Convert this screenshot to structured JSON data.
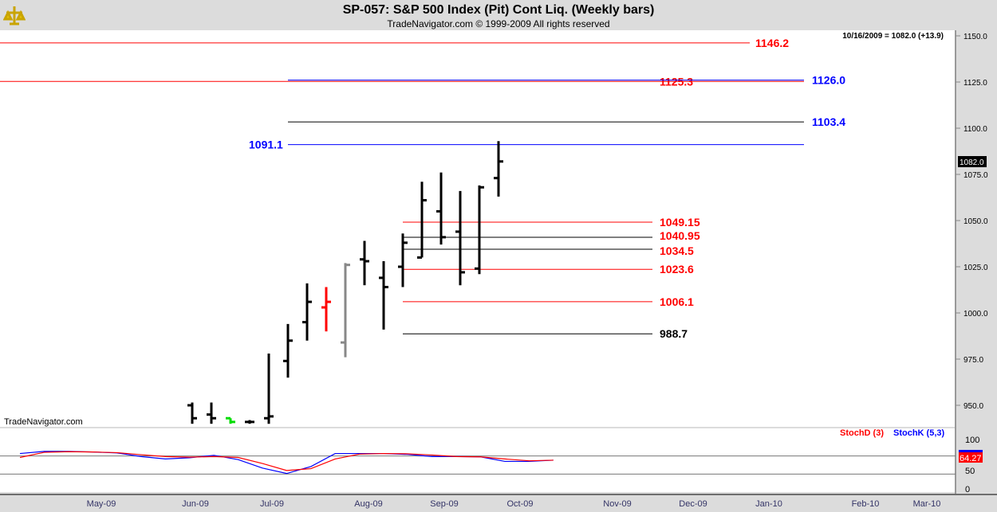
{
  "header": {
    "title": "SP-057:  S&P 500 Index (Pit) Cont Liq.  (Weekly bars)",
    "subtitle": "TradeNavigator.com © 1999-2009 All rights reserved"
  },
  "watermark": "TradeNavigator.com",
  "last_quote": "10/16/2009 = 1082.0 (+13.9)",
  "last_price_tag": "1082.0",
  "indicator": {
    "labels": [
      "StochD (3)",
      "StochK (5,3)"
    ],
    "colors": [
      "#ff0000",
      "#0000ff"
    ],
    "last_value_tag": "64.27",
    "yticks": [
      "100",
      "50",
      "0"
    ]
  },
  "chart_data": {
    "type": "ohlc",
    "title": "SP-057:  S&P 500 Index (Pit) Cont Liq.  (Weekly bars)",
    "ylim": [
      940,
      1155
    ],
    "yticks": [
      "950.0",
      "975.0",
      "1000.0",
      "1025.0",
      "1050.0",
      "1075.0",
      "1100.0",
      "1125.0",
      "1150.0"
    ],
    "xticks": [
      "May-09",
      "Jun-09",
      "Jul-09",
      "Aug-09",
      "Sep-09",
      "Oct-09",
      "Nov-09",
      "Dec-09",
      "Jan-10",
      "Feb-10",
      "Mar-10"
    ],
    "bars": [
      {
        "o": 950,
        "h": 951.5,
        "l": 940,
        "c": 943,
        "color": "#000"
      },
      {
        "o": 945,
        "h": 951.5,
        "l": 940,
        "c": 943,
        "color": "#000"
      },
      {
        "o": 943,
        "h": 943,
        "l": 940,
        "c": 941,
        "color": "#00dd00"
      },
      {
        "o": 941,
        "h": 942,
        "l": 940,
        "c": 941,
        "color": "#000"
      },
      {
        "o": 943,
        "h": 978,
        "l": 940,
        "c": 944,
        "color": "#000"
      },
      {
        "o": 974,
        "h": 994,
        "l": 965,
        "c": 985,
        "color": "#000"
      },
      {
        "o": 995,
        "h": 1016,
        "l": 985,
        "c": 1006,
        "color": "#000"
      },
      {
        "o": 1003,
        "h": 1014,
        "l": 990,
        "c": 1006,
        "color": "#ff0000"
      },
      {
        "o": 984,
        "h": 1027,
        "l": 976,
        "c": 1026,
        "color": "#888888"
      },
      {
        "o": 1029,
        "h": 1039,
        "l": 1015,
        "c": 1028,
        "color": "#000"
      },
      {
        "o": 1019,
        "h": 1028,
        "l": 991,
        "c": 1014,
        "color": "#000"
      },
      {
        "o": 1025,
        "h": 1043,
        "l": 1014,
        "c": 1038,
        "color": "#000"
      },
      {
        "o": 1030,
        "h": 1071,
        "l": 1030,
        "c": 1061,
        "color": "#000"
      },
      {
        "o": 1055,
        "h": 1076,
        "l": 1037,
        "c": 1041,
        "color": "#000"
      },
      {
        "o": 1044,
        "h": 1066,
        "l": 1015,
        "c": 1022,
        "color": "#000"
      },
      {
        "o": 1024,
        "h": 1069,
        "l": 1021,
        "c": 1068,
        "color": "#000"
      },
      {
        "o": 1073,
        "h": 1093,
        "l": 1063,
        "c": 1082,
        "color": "#000"
      }
    ],
    "levels": [
      {
        "label": "1146.2",
        "value": 1146.2,
        "color": "#ff0000"
      },
      {
        "label": "1125.3",
        "value": 1125.3,
        "color": "#ff0000"
      },
      {
        "label": "1126.0",
        "value": 1126.0,
        "color": "#0000ff"
      },
      {
        "label": "1103.4",
        "value": 1103.4,
        "color": "#0000ff"
      },
      {
        "label": "1091.1",
        "value": 1091.1,
        "color": "#0000ff"
      },
      {
        "label": "1049.15",
        "value": 1049.15,
        "color": "#ff0000"
      },
      {
        "label": "1040.95",
        "value": 1040.95,
        "color": "#ff0000"
      },
      {
        "label": "1034.5",
        "value": 1034.5,
        "color": "#ff0000"
      },
      {
        "label": "1023.6",
        "value": 1023.6,
        "color": "#ff0000"
      },
      {
        "label": "1006.1",
        "value": 1006.1,
        "color": "#ff0000"
      },
      {
        "label": "988.7",
        "value": 988.7,
        "color": "#000000"
      }
    ],
    "stochK": [
      88,
      95,
      95,
      93,
      90,
      78,
      70,
      74,
      82,
      68,
      40,
      22,
      45,
      88,
      88,
      88,
      85,
      78,
      78,
      77,
      62,
      62,
      66
    ],
    "stochD": [
      75,
      92,
      94,
      93,
      91,
      84,
      78,
      76,
      78,
      75,
      55,
      32,
      38,
      70,
      86,
      88,
      87,
      83,
      78,
      77,
      70,
      64,
      66
    ]
  }
}
